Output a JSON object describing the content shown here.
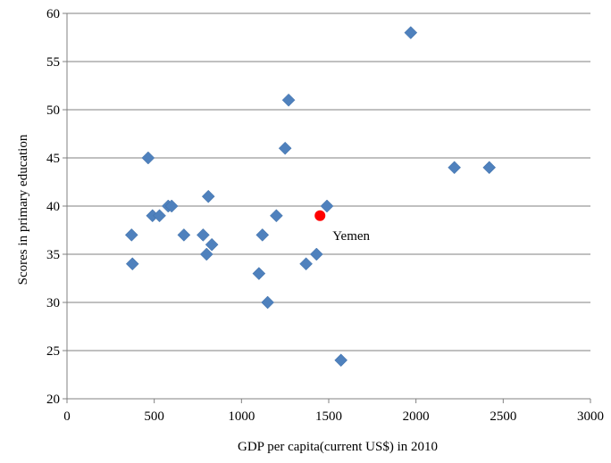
{
  "chart_data": {
    "type": "scatter",
    "title": "",
    "xlabel": "GDP  per capita(current US$) in 2010",
    "ylabel": "Scores in primary education",
    "xlim": [
      0,
      3000
    ],
    "ylim": [
      20,
      60
    ],
    "x_ticks": [
      0,
      500,
      1000,
      1500,
      2000,
      2500,
      3000
    ],
    "y_ticks": [
      20,
      25,
      30,
      35,
      40,
      45,
      50,
      55,
      60
    ],
    "grid": "horizontal",
    "legend": "none",
    "series": [
      {
        "marker": "diamond",
        "color": "#4f81bd",
        "points": [
          {
            "x": 370,
            "y": 37
          },
          {
            "x": 375,
            "y": 34
          },
          {
            "x": 465,
            "y": 45
          },
          {
            "x": 490,
            "y": 39
          },
          {
            "x": 530,
            "y": 39
          },
          {
            "x": 580,
            "y": 40
          },
          {
            "x": 600,
            "y": 40
          },
          {
            "x": 670,
            "y": 37
          },
          {
            "x": 780,
            "y": 37
          },
          {
            "x": 800,
            "y": 35
          },
          {
            "x": 810,
            "y": 41
          },
          {
            "x": 830,
            "y": 36
          },
          {
            "x": 1100,
            "y": 33
          },
          {
            "x": 1120,
            "y": 37
          },
          {
            "x": 1150,
            "y": 30
          },
          {
            "x": 1200,
            "y": 39
          },
          {
            "x": 1250,
            "y": 46
          },
          {
            "x": 1270,
            "y": 51
          },
          {
            "x": 1370,
            "y": 34
          },
          {
            "x": 1430,
            "y": 35
          },
          {
            "x": 1490,
            "y": 40
          },
          {
            "x": 1570,
            "y": 24
          },
          {
            "x": 1970,
            "y": 58
          },
          {
            "x": 2220,
            "y": 44
          },
          {
            "x": 2420,
            "y": 44
          }
        ]
      },
      {
        "marker": "circle",
        "color": "#ff0000",
        "points": [
          {
            "x": 1450,
            "y": 39,
            "label": "Yemen"
          }
        ]
      }
    ],
    "annotations": [
      {
        "text": "Yemen",
        "x": 1450,
        "y": 39
      }
    ]
  }
}
